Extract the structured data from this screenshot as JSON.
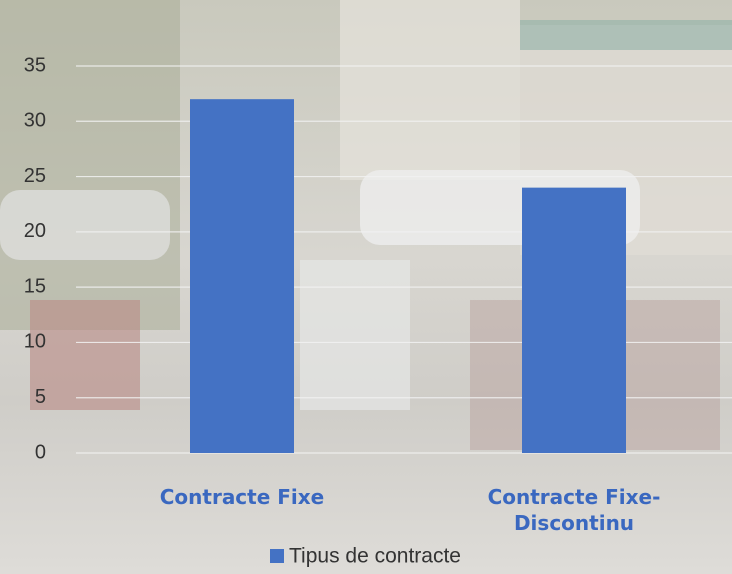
{
  "chart_data": {
    "type": "bar",
    "categories": [
      "Contracte Fixe",
      "Contracte Fixe-Discontinu"
    ],
    "series": [
      {
        "name": "Tipus de contracte",
        "color": "#4472c4",
        "values": [
          32,
          24
        ]
      }
    ],
    "ylim": [
      0,
      35
    ],
    "yticks": [
      0,
      5,
      10,
      15,
      20,
      25,
      30,
      35
    ],
    "grid": true,
    "legend": "bottom"
  }
}
